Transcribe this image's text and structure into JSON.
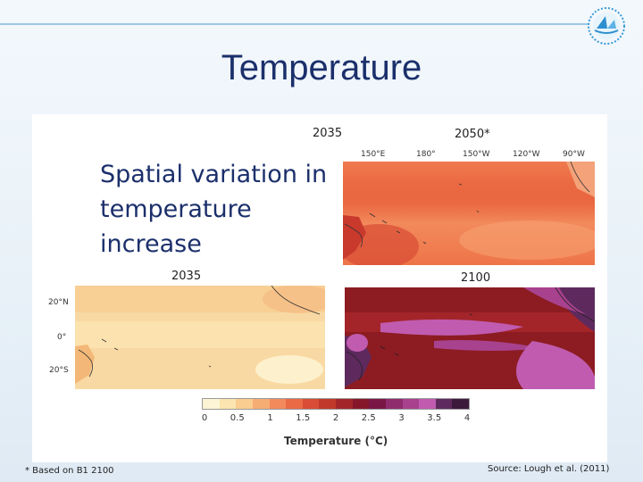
{
  "slide": {
    "title": "Temperature",
    "body_text": "Spatial variation in temperature increase",
    "footnote": "* Based on B1 2100",
    "source": "Source: Lough et al. (2011)"
  },
  "figure": {
    "top_label_left": "2035",
    "top_label_right": "2050*",
    "bottom_label_left": "2035",
    "bottom_label_right": "2100",
    "lon_labels": [
      "150°E",
      "180°",
      "150°W",
      "120°W",
      "90°W"
    ],
    "lat_labels": [
      "20°N",
      "0°",
      "20°S"
    ],
    "scale_ticks": [
      "0",
      "0.5",
      "1",
      "1.5",
      "2",
      "2.5",
      "3",
      "3.5",
      "4"
    ],
    "scale_title": "Temperature (°C)",
    "scale_colors": [
      "#fdf4d6",
      "#fbe4b0",
      "#f9cd8f",
      "#f6ad74",
      "#f28a5c",
      "#ea6a45",
      "#d94c35",
      "#c0392b",
      "#a3252a",
      "#86162a",
      "#7a1646",
      "#8e2c6e",
      "#a8418e",
      "#c05bb0",
      "#5e2a5e",
      "#3c1a3c"
    ]
  },
  "colors": {
    "title": "#1b2f6b",
    "accent_line": "#9cc8e6"
  }
}
